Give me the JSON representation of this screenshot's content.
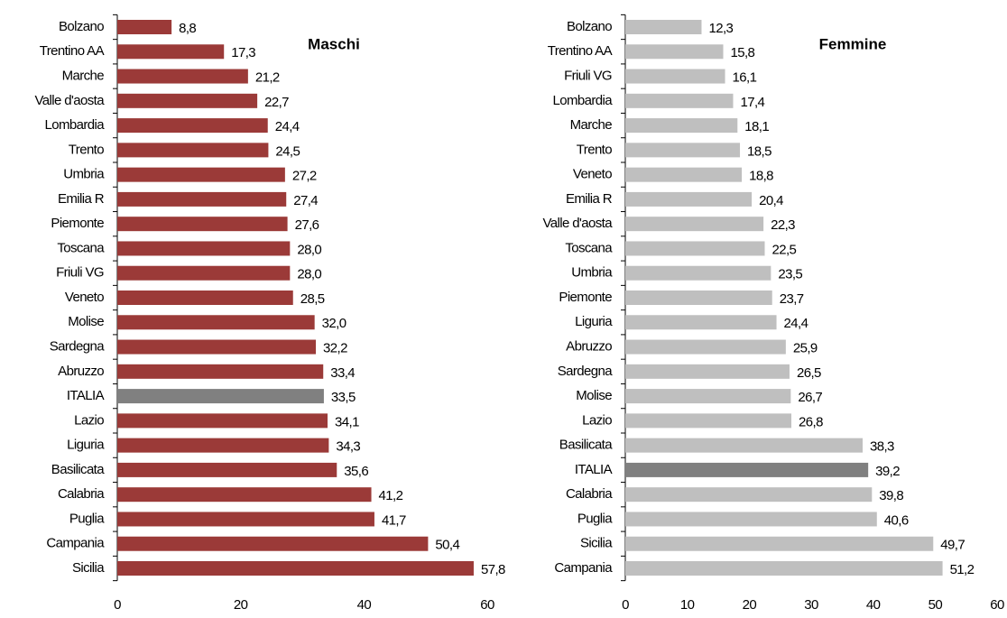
{
  "chart_data": [
    {
      "type": "bar",
      "title": "Maschi",
      "categories": [
        "Bolzano",
        "Trentino AA",
        "Marche",
        "Valle d'aosta",
        "Lombardia",
        "Trento",
        "Umbria",
        "Emilia R",
        "Piemonte",
        "Toscana",
        "Friuli VG",
        "Veneto",
        "Molise",
        "Sardegna",
        "Abruzzo",
        "ITALIA",
        "Lazio",
        "Liguria",
        "Basilicata",
        "Calabria",
        "Puglia",
        "Campania",
        "Sicilia"
      ],
      "values": [
        8.8,
        17.3,
        21.2,
        22.7,
        24.4,
        24.5,
        27.2,
        27.4,
        27.6,
        28.0,
        28.0,
        28.5,
        32.0,
        32.2,
        33.4,
        33.5,
        34.1,
        34.3,
        35.6,
        41.2,
        41.7,
        50.4,
        57.8
      ],
      "value_labels": [
        "8,8",
        "17,3",
        "21,2",
        "22,7",
        "24,4",
        "24,5",
        "27,2",
        "27,4",
        "27,6",
        "28,0",
        "28,0",
        "28,5",
        "32,0",
        "32,2",
        "33,4",
        "33,5",
        "34,1",
        "34,3",
        "35,6",
        "41,2",
        "41,7",
        "50,4",
        "57,8"
      ],
      "colors": [
        "#9b3a38",
        "#9b3a38",
        "#9b3a38",
        "#9b3a38",
        "#9b3a38",
        "#9b3a38",
        "#9b3a38",
        "#9b3a38",
        "#9b3a38",
        "#9b3a38",
        "#9b3a38",
        "#9b3a38",
        "#9b3a38",
        "#9b3a38",
        "#9b3a38",
        "#808080",
        "#9b3a38",
        "#9b3a38",
        "#9b3a38",
        "#9b3a38",
        "#9b3a38",
        "#9b3a38",
        "#9b3a38"
      ],
      "xlim": [
        0,
        60
      ],
      "xticks": [
        0,
        20,
        40,
        60
      ]
    },
    {
      "type": "bar",
      "title": "Femmine",
      "categories": [
        "Bolzano",
        "Trentino AA",
        "Friuli VG",
        "Lombardia",
        "Marche",
        "Trento",
        "Veneto",
        "Emilia R",
        "Valle d'aosta",
        "Toscana",
        "Umbria",
        "Piemonte",
        "Liguria",
        "Abruzzo",
        "Sardegna",
        "Molise",
        "Lazio",
        "Basilicata",
        "ITALIA",
        "Calabria",
        "Puglia",
        "Sicilia",
        "Campania"
      ],
      "values": [
        12.3,
        15.8,
        16.1,
        17.4,
        18.1,
        18.5,
        18.8,
        20.4,
        22.3,
        22.5,
        23.5,
        23.7,
        24.4,
        25.9,
        26.5,
        26.7,
        26.8,
        38.3,
        39.2,
        39.8,
        40.6,
        49.7,
        51.2
      ],
      "value_labels": [
        "12,3",
        "15,8",
        "16,1",
        "17,4",
        "18,1",
        "18,5",
        "18,8",
        "20,4",
        "22,3",
        "22,5",
        "23,5",
        "23,7",
        "24,4",
        "25,9",
        "26,5",
        "26,7",
        "26,8",
        "38,3",
        "39,2",
        "39,8",
        "40,6",
        "49,7",
        "51,2"
      ],
      "colors": [
        "#bfbfbf",
        "#bfbfbf",
        "#bfbfbf",
        "#bfbfbf",
        "#bfbfbf",
        "#bfbfbf",
        "#bfbfbf",
        "#bfbfbf",
        "#bfbfbf",
        "#bfbfbf",
        "#bfbfbf",
        "#bfbfbf",
        "#bfbfbf",
        "#bfbfbf",
        "#bfbfbf",
        "#bfbfbf",
        "#bfbfbf",
        "#bfbfbf",
        "#808080",
        "#bfbfbf",
        "#bfbfbf",
        "#bfbfbf",
        "#bfbfbf"
      ],
      "xlim": [
        0,
        60
      ],
      "xticks": [
        0,
        10,
        20,
        30,
        40,
        50,
        60
      ]
    }
  ]
}
